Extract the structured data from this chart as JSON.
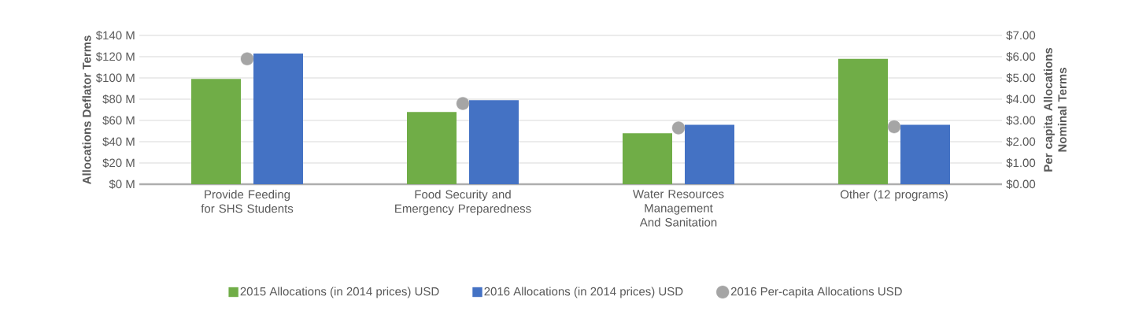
{
  "chart_data": {
    "type": "bar",
    "categories": [
      "Provide Feeding for SHS Students",
      "Food Security and Emergency Preparedness",
      "Water Resources Management And Sanitation",
      "Other (12 programs)"
    ],
    "ylabel": "Allocations Deflator Terms",
    "y2label": "Per capita Allocations Nominal Terms",
    "ylim": [
      0,
      140
    ],
    "yticks": [
      {
        "value": 0,
        "label": "$0 M"
      },
      {
        "value": 20,
        "label": "$20 M"
      },
      {
        "value": 40,
        "label": "$40 M"
      },
      {
        "value": 60,
        "label": "$60 M"
      },
      {
        "value": 80,
        "label": "$80 M"
      },
      {
        "value": 100,
        "label": "$100 M"
      },
      {
        "value": 120,
        "label": "$120 M"
      },
      {
        "value": 140,
        "label": "$140 M"
      }
    ],
    "y2lim": [
      0,
      7
    ],
    "y2ticks": [
      {
        "value": 0,
        "label": "$0.00"
      },
      {
        "value": 1,
        "label": "$1.00"
      },
      {
        "value": 2,
        "label": "$2.00"
      },
      {
        "value": 3,
        "label": "$3.00"
      },
      {
        "value": 4,
        "label": "$4.00"
      },
      {
        "value": 5,
        "label": "$5.00"
      },
      {
        "value": 6,
        "label": "$6.00"
      },
      {
        "value": 7,
        "label": "$7.00"
      }
    ],
    "series": [
      {
        "name": "2015 Allocations (in 2014 prices) USD",
        "color": "#70ad47",
        "values": [
          99,
          68,
          48,
          118
        ]
      },
      {
        "name": "2016 Allocations (in 2014 prices) USD",
        "color": "#4472c4",
        "values": [
          123,
          79,
          56,
          56
        ]
      },
      {
        "name": "2016 Per-capita Allocations USD",
        "type": "scatter",
        "axis": "y2",
        "color": "#a5a5a5",
        "x": [
          "Provide Feeding for SHS Students",
          "Food Security and Emergency Preparedness",
          "Water Resources Management And Sanitation",
          "Other (12 programs)"
        ],
        "values": [
          5.9,
          3.8,
          2.65,
          2.7
        ]
      }
    ],
    "grid": "y",
    "legend": "bottom"
  }
}
